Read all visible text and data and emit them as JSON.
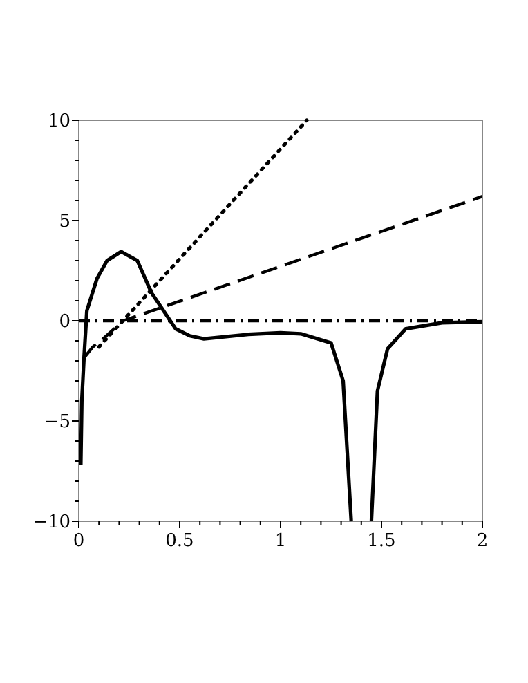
{
  "chart_data": {
    "type": "line",
    "xlim": [
      0,
      2
    ],
    "ylim": [
      -10,
      10
    ],
    "xticks": [
      0,
      {
        "value": 0.1,
        "label": null
      },
      {
        "value": 0.2,
        "label": null
      },
      {
        "value": 0.3,
        "label": null
      },
      {
        "value": 0.4,
        "label": null
      },
      {
        "value": 0.5,
        "label": "0.5"
      },
      {
        "value": 0.6,
        "label": null
      },
      {
        "value": 0.7,
        "label": null
      },
      {
        "value": 0.8,
        "label": null
      },
      {
        "value": 0.9,
        "label": null
      },
      1,
      {
        "value": 1.1,
        "label": null
      },
      {
        "value": 1.2,
        "label": null
      },
      {
        "value": 1.3,
        "label": null
      },
      {
        "value": 1.4,
        "label": null
      },
      {
        "value": 1.5,
        "label": "1.5"
      },
      {
        "value": 1.6,
        "label": null
      },
      {
        "value": 1.7,
        "label": null
      },
      {
        "value": 1.8,
        "label": null
      },
      {
        "value": 1.9,
        "label": null
      },
      2
    ],
    "yticks": [
      -10,
      {
        "value": -9,
        "label": null
      },
      {
        "value": -8,
        "label": null
      },
      {
        "value": -7,
        "label": null
      },
      {
        "value": -6,
        "label": null
      },
      -5,
      {
        "value": -4,
        "label": null
      },
      {
        "value": -3,
        "label": null
      },
      {
        "value": -2,
        "label": null
      },
      {
        "value": -1,
        "label": null
      },
      0,
      {
        "value": 1,
        "label": null
      },
      {
        "value": 2,
        "label": null
      },
      {
        "value": 3,
        "label": null
      },
      {
        "value": 4,
        "label": null
      },
      5,
      {
        "value": 6,
        "label": null
      },
      {
        "value": 7,
        "label": null
      },
      {
        "value": 8,
        "label": null
      },
      {
        "value": 9,
        "label": null
      },
      10
    ],
    "grid": false,
    "marker": "none",
    "series": [
      {
        "color": "#000000",
        "line_style": "solid",
        "x": [
          0.01,
          0.015,
          0.025,
          0.04,
          0.09,
          0.14,
          0.21,
          0.29,
          0.36,
          0.42,
          0.48,
          0.55,
          0.62,
          0.84,
          1.0,
          1.1,
          1.25,
          1.31,
          1.35,
          1.4,
          1.45,
          1.48,
          1.53,
          1.62,
          1.8,
          2.0
        ],
        "values": [
          -7.2,
          -4,
          -2,
          0.5,
          2.1,
          3.0,
          3.45,
          3.0,
          1.4,
          0.5,
          -0.4,
          -0.75,
          -0.9,
          -0.68,
          -0.6,
          -0.65,
          -1.1,
          -3,
          -10,
          null,
          -10,
          -3.5,
          -1.4,
          -0.4,
          -0.1,
          -0.05
        ]
      },
      {
        "color": "#000000",
        "line_style": "dotted",
        "x": [
          0.1,
          1.13
        ],
        "values": [
          -1.3,
          10
        ]
      },
      {
        "color": "#000000",
        "line_style": "dashed",
        "x": [
          0.03,
          0.07,
          0.12,
          0.22,
          2.0
        ],
        "values": [
          -1.8,
          -1.3,
          -0.9,
          0,
          6.2
        ]
      },
      {
        "color": "#000000",
        "line_style": "dashdot",
        "x": [
          0,
          2
        ],
        "values": [
          0,
          0
        ]
      }
    ]
  }
}
